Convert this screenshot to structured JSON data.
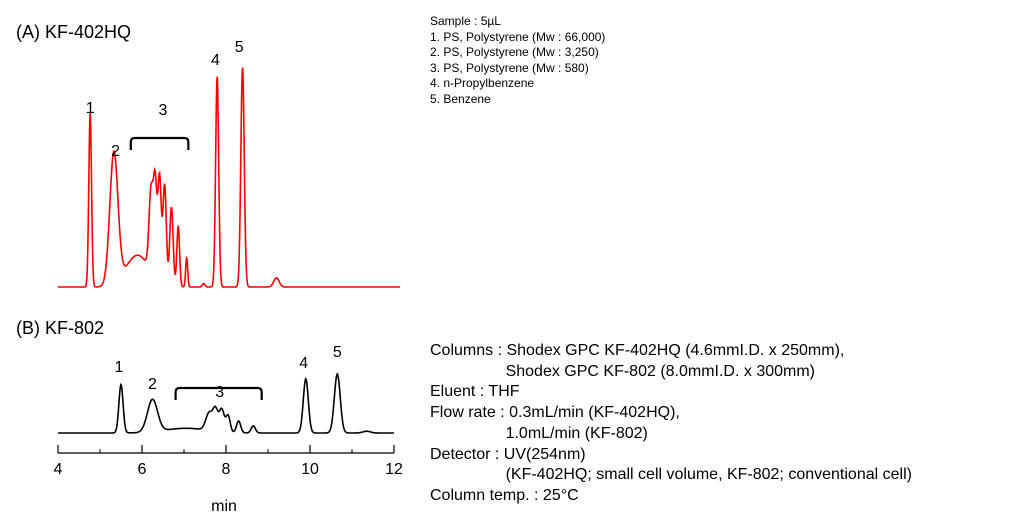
{
  "sample": {
    "lines": [
      "Sample : 5µL",
      "1. PS, Polystyrene (Mw : 66,000)",
      "2. PS, Polystyrene (Mw : 3,250)",
      "3. PS, Polystyrene (Mw : 580)",
      "4. n-Propylbenzene",
      "5. Benzene"
    ]
  },
  "conditions": {
    "lines": [
      "Columns : Shodex GPC KF-402HQ (4.6mmI.D. x 250mm),",
      "                 Shodex GPC KF-802 (8.0mmI.D. x 300mm)",
      "Eluent : THF",
      "Flow rate : 0.3mL/min (KF-402HQ),",
      "                 1.0mL/min (KF-802)",
      "Detector : UV(254nm)",
      "                 (KF-402HQ; small cell volume, KF-802; conventional cell)",
      "Column temp. : 25°C"
    ]
  },
  "colors": {
    "trace_a": "#ff0000",
    "trace_b": "#000000"
  },
  "chart_data": [
    {
      "type": "line",
      "title": "(A) KF-402HQ",
      "x_domain": [
        4.1,
        14.2
      ],
      "baseline": 0.0,
      "peaks": [
        {
          "x": 5.05,
          "h": 0.77,
          "w": 0.04
        },
        {
          "x": 5.75,
          "h": 0.58,
          "w": 0.12
        },
        {
          "x": 6.45,
          "h": 0.14,
          "w": 0.35
        },
        {
          "x": 6.85,
          "h": 0.36,
          "w": 0.06
        },
        {
          "x": 6.97,
          "h": 0.4,
          "w": 0.05
        },
        {
          "x": 7.1,
          "h": 0.46,
          "w": 0.05
        },
        {
          "x": 7.25,
          "h": 0.44,
          "w": 0.05
        },
        {
          "x": 7.45,
          "h": 0.35,
          "w": 0.05
        },
        {
          "x": 7.65,
          "h": 0.27,
          "w": 0.04
        },
        {
          "x": 7.9,
          "h": 0.13,
          "w": 0.03
        },
        {
          "x": 8.4,
          "h": 0.015,
          "w": 0.04
        },
        {
          "x": 8.8,
          "h": 0.93,
          "w": 0.045
        },
        {
          "x": 9.55,
          "h": 0.97,
          "w": 0.05
        },
        {
          "x": 10.55,
          "h": 0.04,
          "w": 0.08
        }
      ],
      "peak_labels": [
        {
          "text": "1",
          "x": 5.05
        },
        {
          "text": "2",
          "x": 5.8
        },
        {
          "text": "3",
          "x": 7.2
        },
        {
          "text": "4",
          "x": 8.75
        },
        {
          "text": "5",
          "x": 9.45
        }
      ],
      "bracket": {
        "x1": 6.25,
        "x2": 7.95
      }
    },
    {
      "type": "line",
      "title": "(B) KF-802",
      "xlabel": "min",
      "x_domain": [
        4,
        12
      ],
      "xticks": [
        4,
        6,
        8,
        10,
        12
      ],
      "baseline": 0.0,
      "peaks": [
        {
          "x": 5.5,
          "h": 0.82,
          "w": 0.05
        },
        {
          "x": 6.25,
          "h": 0.55,
          "w": 0.12
        },
        {
          "x": 7.05,
          "h": 0.08,
          "w": 0.5
        },
        {
          "x": 7.6,
          "h": 0.3,
          "w": 0.08
        },
        {
          "x": 7.75,
          "h": 0.35,
          "w": 0.06
        },
        {
          "x": 7.9,
          "h": 0.38,
          "w": 0.06
        },
        {
          "x": 8.05,
          "h": 0.28,
          "w": 0.05
        },
        {
          "x": 8.3,
          "h": 0.2,
          "w": 0.05
        },
        {
          "x": 8.65,
          "h": 0.12,
          "w": 0.05
        },
        {
          "x": 9.9,
          "h": 0.92,
          "w": 0.06
        },
        {
          "x": 10.65,
          "h": 1.0,
          "w": 0.07
        },
        {
          "x": 11.35,
          "h": 0.03,
          "w": 0.09
        }
      ],
      "peak_labels": [
        {
          "text": "1",
          "x": 5.45
        },
        {
          "text": "2",
          "x": 6.25
        },
        {
          "text": "3",
          "x": 7.85
        },
        {
          "text": "4",
          "x": 9.85
        },
        {
          "text": "5",
          "x": 10.65
        }
      ],
      "bracket": {
        "x1": 6.8,
        "x2": 8.85
      }
    }
  ]
}
